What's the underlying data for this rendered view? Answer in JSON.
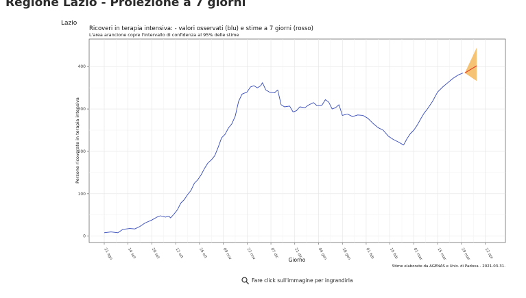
{
  "header": {
    "page_title": "Regione Lazio - Proiezione a 7 giorni",
    "region_label": "Lazio"
  },
  "footer": {
    "zoom_hint": "Fare click sull'immagine per ingrandirla"
  },
  "chart_data": {
    "type": "line",
    "title": "Ricoveri in terapia intensiva: - valori osservati (blu) e stime a 7 giorni (rosso)",
    "subtitle": "L'area arancione copre l'intervallo di confidenza al 95% delle stime",
    "xlabel": "Giorno",
    "ylabel": "Persone ricoverate in terapia intensiva",
    "caption": "Stime elaborate da AGENAS e Univ. di Padova - 2021-03-31.",
    "ylim": [
      -15,
      465
    ],
    "yticks": [
      0,
      100,
      200,
      300,
      400
    ],
    "xticks": [
      "31 ago",
      "14 set",
      "28 set",
      "12 ott",
      "26 ott",
      "09 nov",
      "23 nov",
      "07 dic",
      "21 dic",
      "04 gen",
      "18 gen",
      "01 feb",
      "15 feb",
      "01 mar",
      "15 mar",
      "29 mar",
      "12 apr"
    ],
    "grid": true,
    "legend": "none",
    "colors": {
      "observed": "#3348b8",
      "estimate": "#e0402a",
      "confidence": "#f5b75a"
    },
    "x_start": "2020-08-31",
    "x_end": "2021-04-15",
    "series": [
      {
        "values": [
          [
            "2020-08-31",
            8
          ],
          [
            "2020-09-04",
            10
          ],
          [
            "2020-09-08",
            8
          ],
          [
            "2020-09-11",
            16
          ],
          [
            "2020-09-15",
            18
          ],
          [
            "2020-09-18",
            17
          ],
          [
            "2020-09-21",
            23
          ],
          [
            "2020-09-24",
            31
          ],
          [
            "2020-09-28",
            38
          ],
          [
            "2020-10-01",
            45
          ],
          [
            "2020-10-03",
            48
          ],
          [
            "2020-10-06",
            45
          ],
          [
            "2020-10-08",
            47
          ],
          [
            "2020-10-09",
            43
          ],
          [
            "2020-10-11",
            52
          ],
          [
            "2020-10-13",
            62
          ],
          [
            "2020-10-15",
            78
          ],
          [
            "2020-10-17",
            86
          ],
          [
            "2020-10-19",
            98
          ],
          [
            "2020-10-21",
            108
          ],
          [
            "2020-10-23",
            125
          ],
          [
            "2020-10-25",
            133
          ],
          [
            "2020-10-27",
            145
          ],
          [
            "2020-10-29",
            160
          ],
          [
            "2020-10-31",
            173
          ],
          [
            "2020-11-02",
            180
          ],
          [
            "2020-11-04",
            190
          ],
          [
            "2020-11-06",
            210
          ],
          [
            "2020-11-08",
            232
          ],
          [
            "2020-11-10",
            240
          ],
          [
            "2020-11-12",
            255
          ],
          [
            "2020-11-14",
            265
          ],
          [
            "2020-11-16",
            283
          ],
          [
            "2020-11-18",
            318
          ],
          [
            "2020-11-20",
            335
          ],
          [
            "2020-11-23",
            340
          ],
          [
            "2020-11-25",
            352
          ],
          [
            "2020-11-27",
            355
          ],
          [
            "2020-11-29",
            350
          ],
          [
            "2020-12-01",
            355
          ],
          [
            "2020-12-02",
            362
          ],
          [
            "2020-12-04",
            345
          ],
          [
            "2020-12-06",
            340
          ],
          [
            "2020-12-09",
            338
          ],
          [
            "2020-12-11",
            345
          ],
          [
            "2020-12-13",
            310
          ],
          [
            "2020-12-15",
            305
          ],
          [
            "2020-12-18",
            307
          ],
          [
            "2020-12-20",
            293
          ],
          [
            "2020-12-22",
            296
          ],
          [
            "2020-12-24",
            305
          ],
          [
            "2020-12-27",
            303
          ],
          [
            "2020-12-29",
            309
          ],
          [
            "2021-01-01",
            315
          ],
          [
            "2021-01-03",
            308
          ],
          [
            "2021-01-06",
            309
          ],
          [
            "2021-01-08",
            322
          ],
          [
            "2021-01-10",
            316
          ],
          [
            "2021-01-12",
            300
          ],
          [
            "2021-01-14",
            303
          ],
          [
            "2021-01-16",
            310
          ],
          [
            "2021-01-18",
            285
          ],
          [
            "2021-01-21",
            288
          ],
          [
            "2021-01-24",
            282
          ],
          [
            "2021-01-27",
            286
          ],
          [
            "2021-01-30",
            285
          ],
          [
            "2021-02-02",
            278
          ],
          [
            "2021-02-05",
            266
          ],
          [
            "2021-02-08",
            256
          ],
          [
            "2021-02-11",
            250
          ],
          [
            "2021-02-14",
            236
          ],
          [
            "2021-02-17",
            228
          ],
          [
            "2021-02-20",
            222
          ],
          [
            "2021-02-23",
            215
          ],
          [
            "2021-02-25",
            230
          ],
          [
            "2021-02-27",
            242
          ],
          [
            "2021-03-01",
            250
          ],
          [
            "2021-03-03",
            262
          ],
          [
            "2021-03-05",
            276
          ],
          [
            "2021-03-07",
            290
          ],
          [
            "2021-03-09",
            300
          ],
          [
            "2021-03-12",
            318
          ],
          [
            "2021-03-15",
            340
          ],
          [
            "2021-03-18",
            352
          ],
          [
            "2021-03-21",
            362
          ],
          [
            "2021-03-24",
            372
          ],
          [
            "2021-03-27",
            380
          ],
          [
            "2021-03-30",
            385
          ]
        ]
      },
      {
        "values": [
          [
            "2021-03-31",
            385
          ],
          [
            "2021-04-07",
            402
          ]
        ]
      }
    ],
    "confidence_band": {
      "upper": [
        [
          "2021-03-31",
          385
        ],
        [
          "2021-04-07",
          445
        ]
      ],
      "lower": [
        [
          "2021-03-31",
          385
        ],
        [
          "2021-04-07",
          366
        ]
      ]
    }
  }
}
